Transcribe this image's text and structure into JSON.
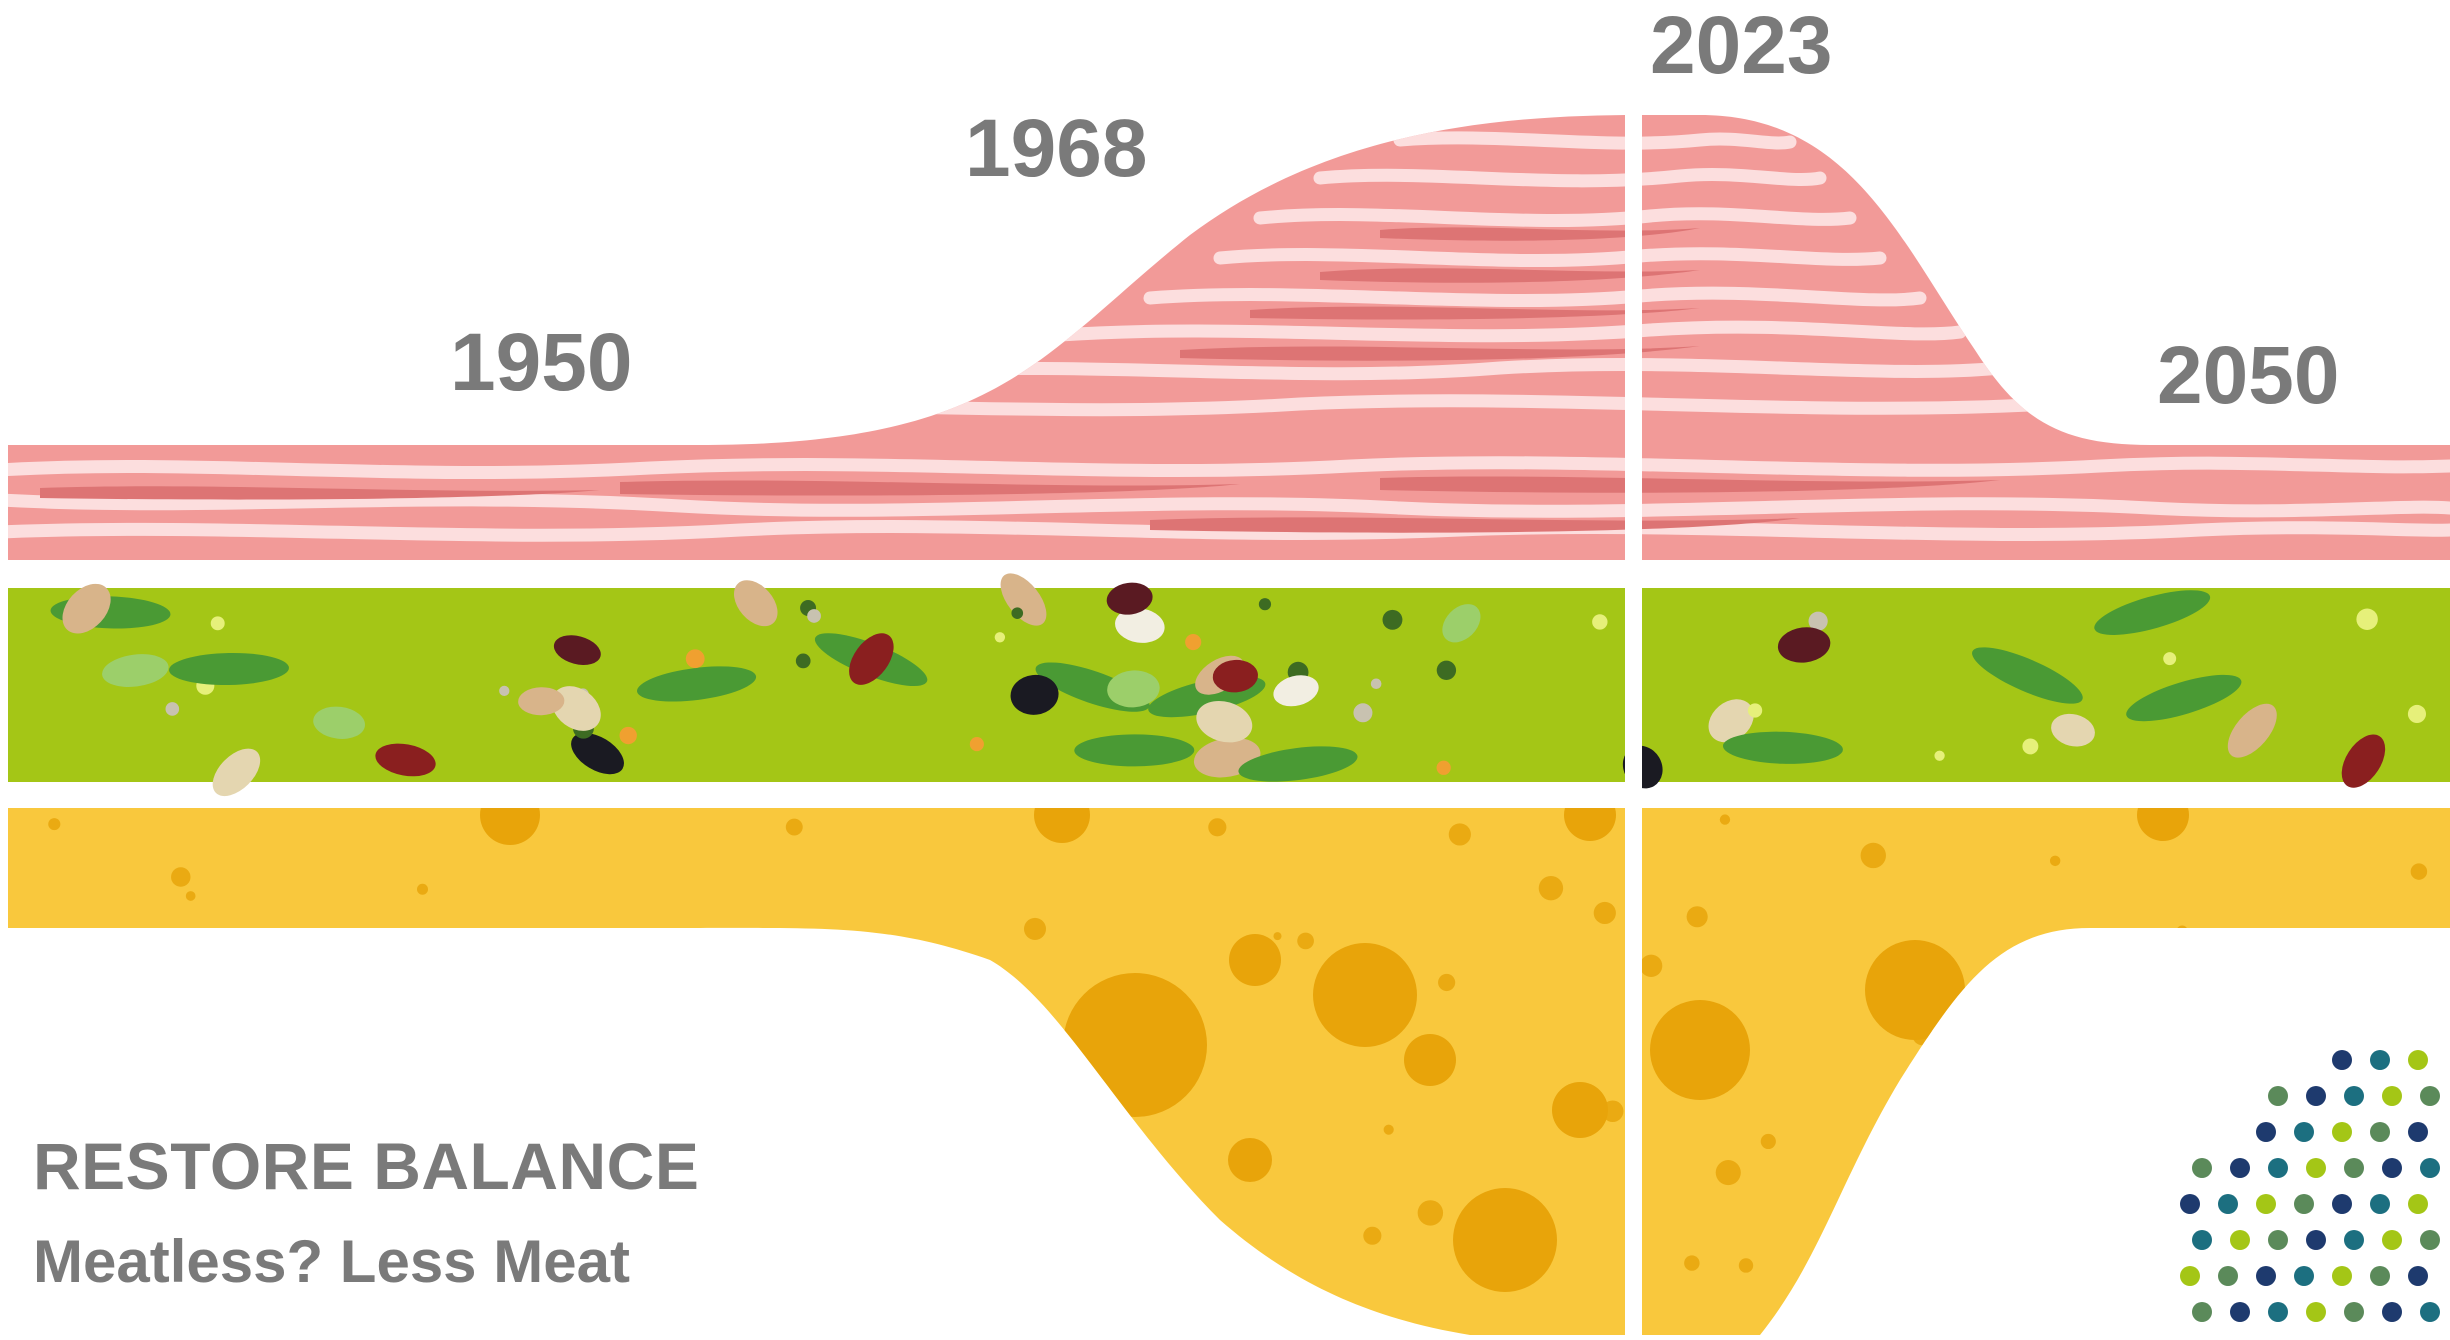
{
  "timeline": {
    "years": [
      "1950",
      "1968",
      "2023",
      "2050"
    ]
  },
  "caption": {
    "headline": "RESTORE BALANCE",
    "subline": "Meatless? Less Meat"
  },
  "palette": {
    "meat_light": "#f29a98",
    "meat_dark": "#dd7474",
    "meat_marbling": "#fcdede",
    "legume_bg": "#a4c616",
    "leaf": "#4a9a34",
    "cheese": "#f9c83d",
    "cheese_hole": "#e8a40a",
    "text_gray": "#7a7a7a",
    "dots": [
      "#1e3a6e",
      "#1c6f80",
      "#a4c616",
      "#5b8a5a"
    ]
  },
  "icons": [
    "meat-layer-icon",
    "legume-layer-icon",
    "cheese-layer-icon",
    "dot-pattern-icon"
  ]
}
